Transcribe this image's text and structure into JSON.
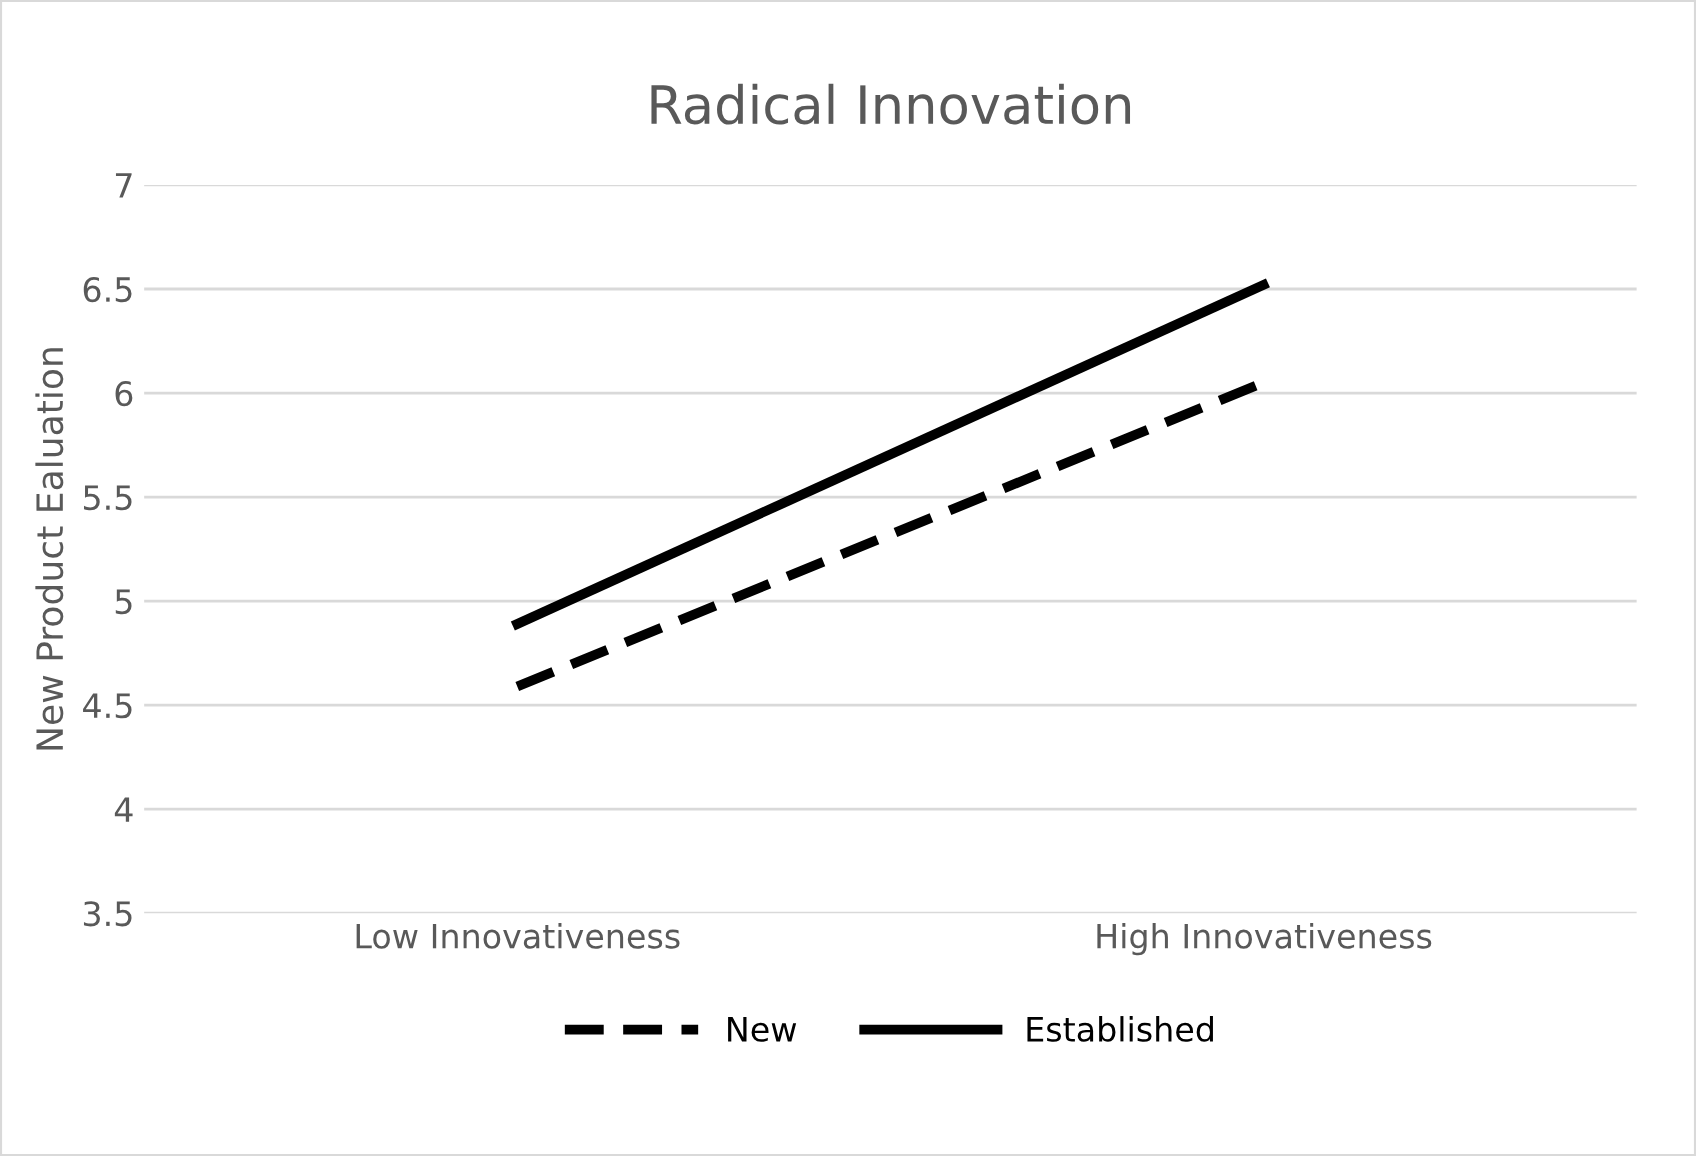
{
  "chart_data": {
    "type": "line",
    "title": "Radical Innovation",
    "ylabel": "New Product Ealuation",
    "categories": [
      "Low Innovativeness",
      "High Innovativeness"
    ],
    "series": [
      {
        "name": "New",
        "color": "#000000",
        "values": [
          4.59,
          6.05
        ],
        "line_style": "dashed"
      },
      {
        "name": "Established",
        "color": "#000000",
        "values": [
          4.89,
          6.52
        ],
        "line_style": "solid"
      }
    ],
    "ylim": [
      3.5,
      7
    ],
    "yticks": [
      3.5,
      4,
      4.5,
      5,
      5.5,
      6,
      6.5,
      7
    ],
    "grid": "y",
    "legend": "bottom",
    "marker": "none"
  }
}
